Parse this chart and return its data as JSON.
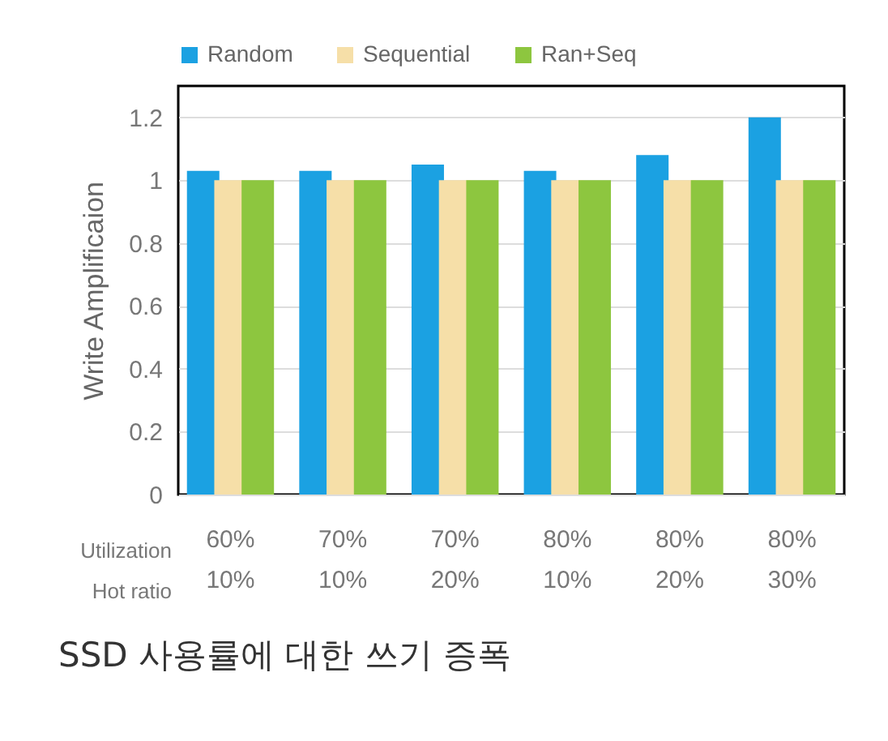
{
  "chart_data": {
    "type": "bar",
    "ylabel": "Write Amplificaion",
    "categories": [
      "60%\n10%",
      "70%\n10%",
      "70%\n20%",
      "80%\n10%",
      "80%\n20%",
      "80%\n30%"
    ],
    "series": [
      {
        "name": "Random",
        "color": "#1ba1e2",
        "values": [
          1.03,
          1.03,
          1.05,
          1.03,
          1.08,
          1.2
        ]
      },
      {
        "name": "Sequential",
        "color": "#f6dfa8",
        "values": [
          1,
          1,
          1,
          1,
          1,
          1
        ]
      },
      {
        "name": "Ran+Seq",
        "color": "#8dc63f",
        "values": [
          1,
          1,
          1,
          1,
          1,
          1
        ]
      }
    ],
    "ylim": [
      0,
      1.3
    ],
    "yticks": [
      0,
      0.2,
      0.4,
      0.6,
      0.8,
      1,
      1.2
    ],
    "grid": "y",
    "legend": "top",
    "annotations": [
      "Utilization",
      "Hot ratio",
      "SSD 사용률에 대한 쓰기 증폭"
    ]
  }
}
